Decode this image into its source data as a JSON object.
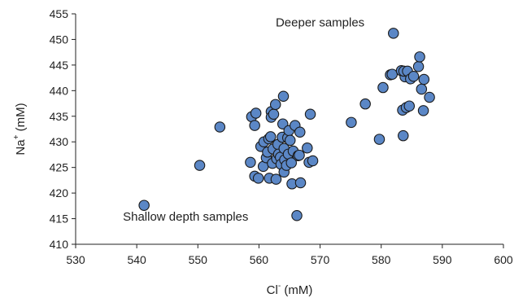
{
  "chart_data": {
    "type": "scatter",
    "xlabel": {
      "base": "Cl",
      "sup": "-",
      "unit": " (mM)"
    },
    "ylabel": {
      "base": "Na",
      "sup": "+",
      "unit": " (mM)"
    },
    "xlim": [
      530,
      600
    ],
    "ylim": [
      410,
      455
    ],
    "xticks": [
      "530",
      "540",
      "550",
      "560",
      "570",
      "580",
      "590",
      "600"
    ],
    "yticks": [
      "410",
      "415",
      "420",
      "425",
      "430",
      "435",
      "440",
      "445",
      "450",
      "455"
    ],
    "grid": false,
    "annotations": [
      {
        "text": "Deeper samples",
        "x": 570,
        "y": 452.5
      },
      {
        "text": "Shallow depth samples",
        "x": 548,
        "y": 414.6
      }
    ],
    "marker_color": "#5b87c6",
    "marker_edge": "#1a1a1a",
    "series": [
      {
        "points": [
          [
            541.2,
            417.6
          ],
          [
            550.3,
            425.4
          ],
          [
            553.6,
            432.9
          ],
          [
            558.6,
            426.0
          ],
          [
            558.8,
            434.9
          ],
          [
            559.3,
            433.2
          ],
          [
            559.5,
            435.6
          ],
          [
            559.3,
            423.3
          ],
          [
            559.9,
            422.9
          ],
          [
            560.3,
            429.1
          ],
          [
            560.7,
            425.2
          ],
          [
            560.8,
            430.0
          ],
          [
            561.2,
            426.9
          ],
          [
            561.6,
            430.6
          ],
          [
            561.4,
            428.0
          ],
          [
            561.9,
            431.0
          ],
          [
            561.7,
            422.9
          ],
          [
            562.0,
            435.9
          ],
          [
            562.0,
            434.8
          ],
          [
            562.3,
            428.6
          ],
          [
            562.2,
            425.8
          ],
          [
            562.4,
            435.4
          ],
          [
            562.7,
            437.3
          ],
          [
            562.8,
            422.7
          ],
          [
            562.9,
            426.7
          ],
          [
            563.1,
            429.5
          ],
          [
            563.2,
            427.6
          ],
          [
            563.5,
            427.0
          ],
          [
            563.6,
            425.6
          ],
          [
            563.8,
            430.9
          ],
          [
            563.9,
            433.5
          ],
          [
            564.0,
            438.9
          ],
          [
            564.1,
            428.7
          ],
          [
            564.1,
            424.1
          ],
          [
            564.2,
            426.5
          ],
          [
            564.5,
            425.4
          ],
          [
            564.7,
            430.8
          ],
          [
            564.9,
            432.2
          ],
          [
            564.8,
            427.6
          ],
          [
            565.1,
            430.3
          ],
          [
            565.3,
            425.9
          ],
          [
            565.4,
            421.8
          ],
          [
            565.6,
            428.2
          ],
          [
            565.9,
            433.2
          ],
          [
            566.2,
            415.6
          ],
          [
            566.4,
            427.3
          ],
          [
            566.7,
            431.9
          ],
          [
            566.8,
            422.0
          ],
          [
            566.6,
            427.4
          ],
          [
            567.9,
            428.8
          ],
          [
            568.2,
            426.0
          ],
          [
            568.4,
            435.4
          ],
          [
            568.8,
            426.3
          ],
          [
            575.1,
            433.8
          ],
          [
            577.4,
            437.4
          ],
          [
            579.7,
            430.5
          ],
          [
            580.3,
            440.6
          ],
          [
            581.5,
            443.1
          ],
          [
            581.8,
            443.2
          ],
          [
            582.0,
            451.2
          ],
          [
            583.3,
            443.9
          ],
          [
            583.5,
            436.2
          ],
          [
            583.6,
            431.2
          ],
          [
            583.9,
            442.7
          ],
          [
            583.7,
            443.8
          ],
          [
            584.1,
            436.7
          ],
          [
            584.3,
            443.8
          ],
          [
            584.6,
            437.0
          ],
          [
            584.8,
            442.3
          ],
          [
            585.3,
            442.8
          ],
          [
            586.1,
            444.7
          ],
          [
            586.3,
            446.6
          ],
          [
            586.6,
            440.3
          ],
          [
            586.9,
            436.1
          ],
          [
            587.0,
            442.2
          ],
          [
            587.9,
            438.7
          ]
        ]
      }
    ]
  }
}
